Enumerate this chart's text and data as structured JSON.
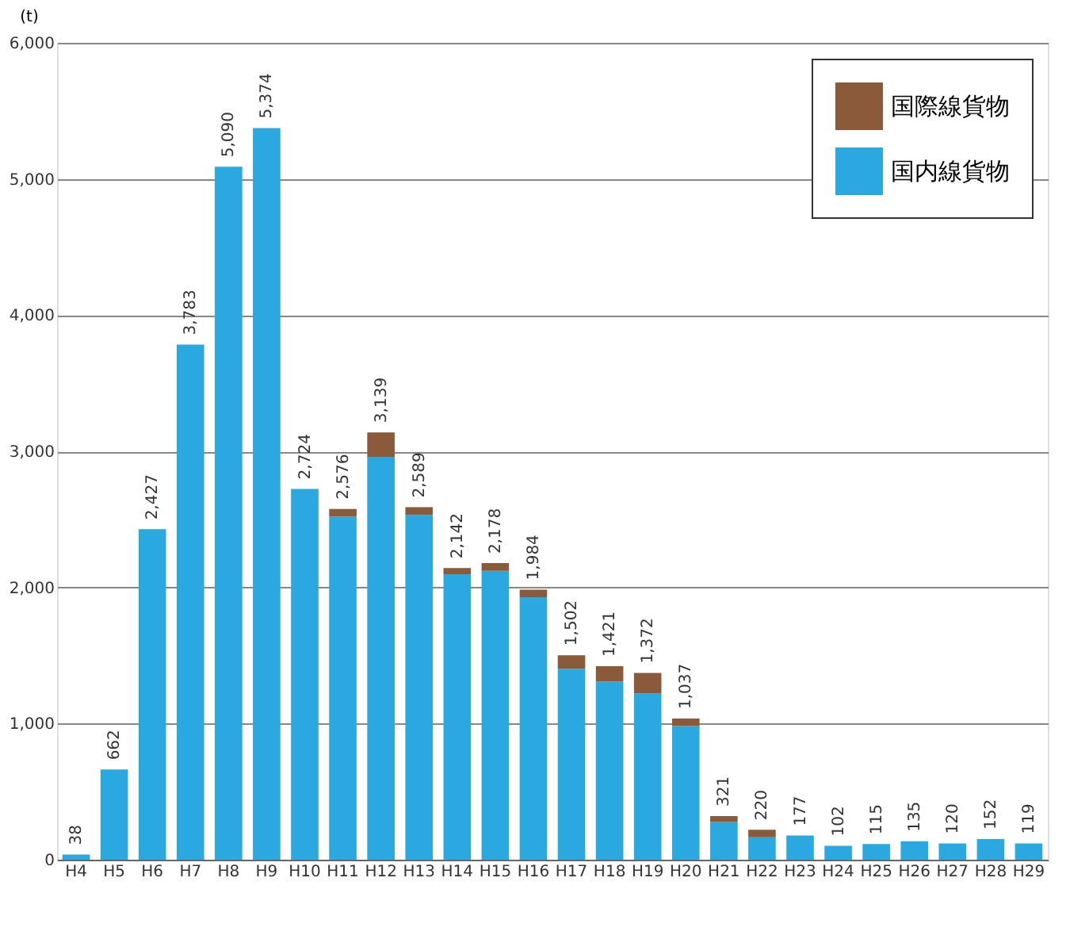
{
  "chart_data": {
    "type": "bar",
    "stacked": true,
    "ylabel": "(t)",
    "categories": [
      "H4",
      "H5",
      "H6",
      "H7",
      "H8",
      "H9",
      "H10",
      "H11",
      "H12",
      "H13",
      "H14",
      "H15",
      "H16",
      "H17",
      "H18",
      "H19",
      "H20",
      "H21",
      "H22",
      "H23",
      "H24",
      "H25",
      "H26",
      "H27",
      "H28",
      "H29"
    ],
    "series": [
      {
        "name": "国内線貨物",
        "color": "#29a9e0",
        "values": [
          38,
          662,
          2427,
          3783,
          5090,
          5374,
          2724,
          2520,
          2959,
          2533,
          2097,
          2122,
          1928,
          1402,
          1308,
          1222,
          981,
          276,
          164,
          177,
          102,
          115,
          135,
          120,
          152,
          119
        ]
      },
      {
        "name": "国際線貨物",
        "color": "#8b5a3a",
        "values": [
          0,
          0,
          0,
          0,
          0,
          0,
          0,
          56,
          180,
          56,
          45,
          56,
          56,
          100,
          113,
          150,
          56,
          45,
          56,
          0,
          0,
          0,
          0,
          0,
          0,
          0
        ]
      }
    ],
    "totals": [
      "38",
      "662",
      "2,427",
      "3,783",
      "5,090",
      "5,374",
      "2,724",
      "2,576",
      "3,139",
      "2,589",
      "2,142",
      "2,178",
      "1,984",
      "1,502",
      "1,421",
      "1,372",
      "1,037",
      "321",
      "220",
      "177",
      "102",
      "115",
      "135",
      "120",
      "152",
      "119"
    ],
    "ylim": [
      0,
      6000
    ],
    "yticks": [
      {
        "value": 0,
        "label": "0"
      },
      {
        "value": 1000,
        "label": "1,000"
      },
      {
        "value": 2000,
        "label": "2,000"
      },
      {
        "value": 3000,
        "label": "3,000"
      },
      {
        "value": 4000,
        "label": "4,000"
      },
      {
        "value": 5000,
        "label": "5,000"
      },
      {
        "value": 6000,
        "label": "6,000"
      }
    ],
    "grid": "y",
    "legend": "top right"
  }
}
